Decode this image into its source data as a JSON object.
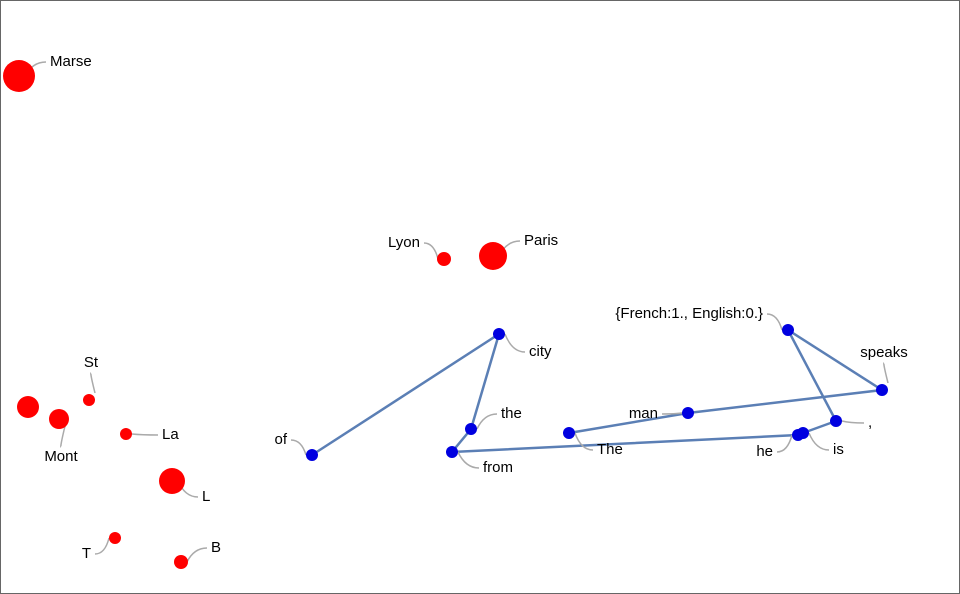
{
  "red_points": [
    {
      "label": "Marse"
    },
    {
      "label": "Lyon"
    },
    {
      "label": "Paris"
    },
    {
      "label": "St"
    },
    {
      "label": "Mont"
    },
    {
      "label": "La"
    },
    {
      "label": "L"
    },
    {
      "label": "T"
    },
    {
      "label": "B"
    }
  ],
  "blue_path": [
    {
      "label": "of"
    },
    {
      "label": "city"
    },
    {
      "label": "the"
    },
    {
      "label": "from"
    },
    {
      "label": "he"
    },
    {
      "label": "is"
    },
    {
      "label": ","
    },
    {
      "label": "{French:1., English:0.}"
    },
    {
      "label": "speaks"
    },
    {
      "label": "man"
    },
    {
      "label": "The"
    }
  ]
}
